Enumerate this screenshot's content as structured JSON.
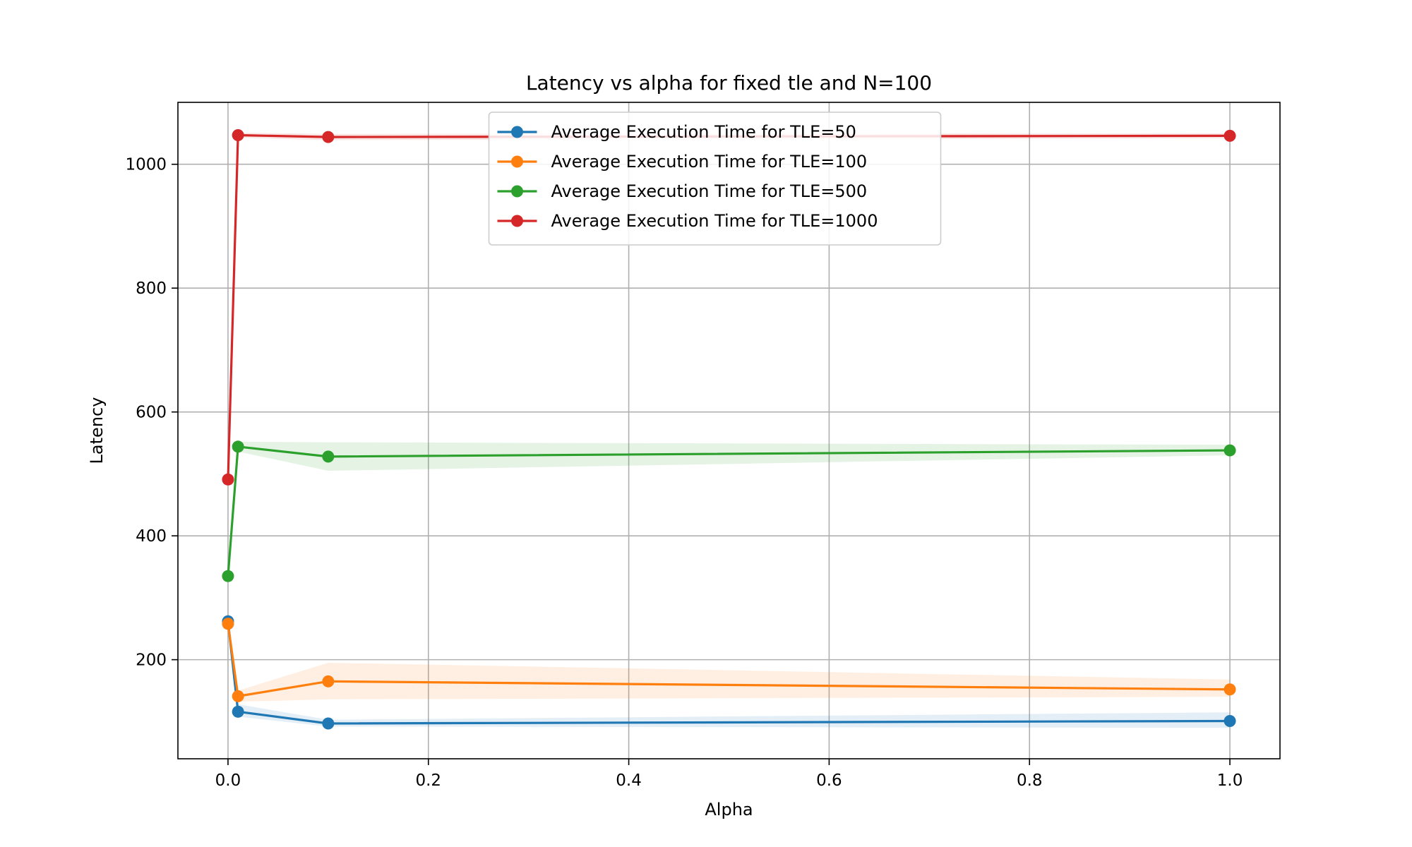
{
  "chart_data": {
    "type": "line",
    "title": "Latency vs alpha for fixed tle and N=100",
    "xlabel": "Alpha",
    "ylabel": "Latency",
    "xlim": [
      -0.05,
      1.05
    ],
    "ylim": [
      40,
      1100
    ],
    "xticks": [
      0.0,
      0.2,
      0.4,
      0.6,
      0.8,
      1.0
    ],
    "xtick_labels": [
      "0.0",
      "0.2",
      "0.4",
      "0.6",
      "0.8",
      "1.0"
    ],
    "yticks": [
      200,
      400,
      600,
      800,
      1000
    ],
    "ytick_labels": [
      "200",
      "400",
      "600",
      "800",
      "1000"
    ],
    "grid": true,
    "legend_position": "upper center",
    "series": [
      {
        "name": "Average Execution Time for TLE=50",
        "color": "#1f77b4",
        "x": [
          0,
          0.01,
          0.1,
          1.0
        ],
        "values": [
          262,
          116,
          97,
          101
        ],
        "band_lower": [
          255,
          108,
          92,
          90
        ],
        "band_upper": [
          268,
          128,
          103,
          115
        ]
      },
      {
        "name": "Average Execution Time for TLE=100",
        "color": "#ff7f0e",
        "x": [
          0,
          0.01,
          0.1,
          1.0
        ],
        "values": [
          258,
          141,
          165,
          152
        ],
        "band_lower": [
          254,
          132,
          136,
          140
        ],
        "band_upper": [
          262,
          150,
          195,
          168
        ]
      },
      {
        "name": "Average Execution Time for TLE=500",
        "color": "#2ca02c",
        "x": [
          0,
          0.01,
          0.1,
          1.0
        ],
        "values": [
          335,
          544,
          528,
          538
        ],
        "band_lower": [
          330,
          536,
          505,
          530
        ],
        "band_upper": [
          340,
          552,
          551,
          547
        ]
      },
      {
        "name": "Average Execution Time for TLE=1000",
        "color": "#d62728",
        "x": [
          0,
          0.01,
          0.1,
          1.0
        ],
        "values": [
          491,
          1047,
          1044,
          1046
        ],
        "band_lower": [
          487,
          1043,
          1039,
          1042
        ],
        "band_upper": [
          495,
          1051,
          1049,
          1050
        ]
      }
    ]
  }
}
